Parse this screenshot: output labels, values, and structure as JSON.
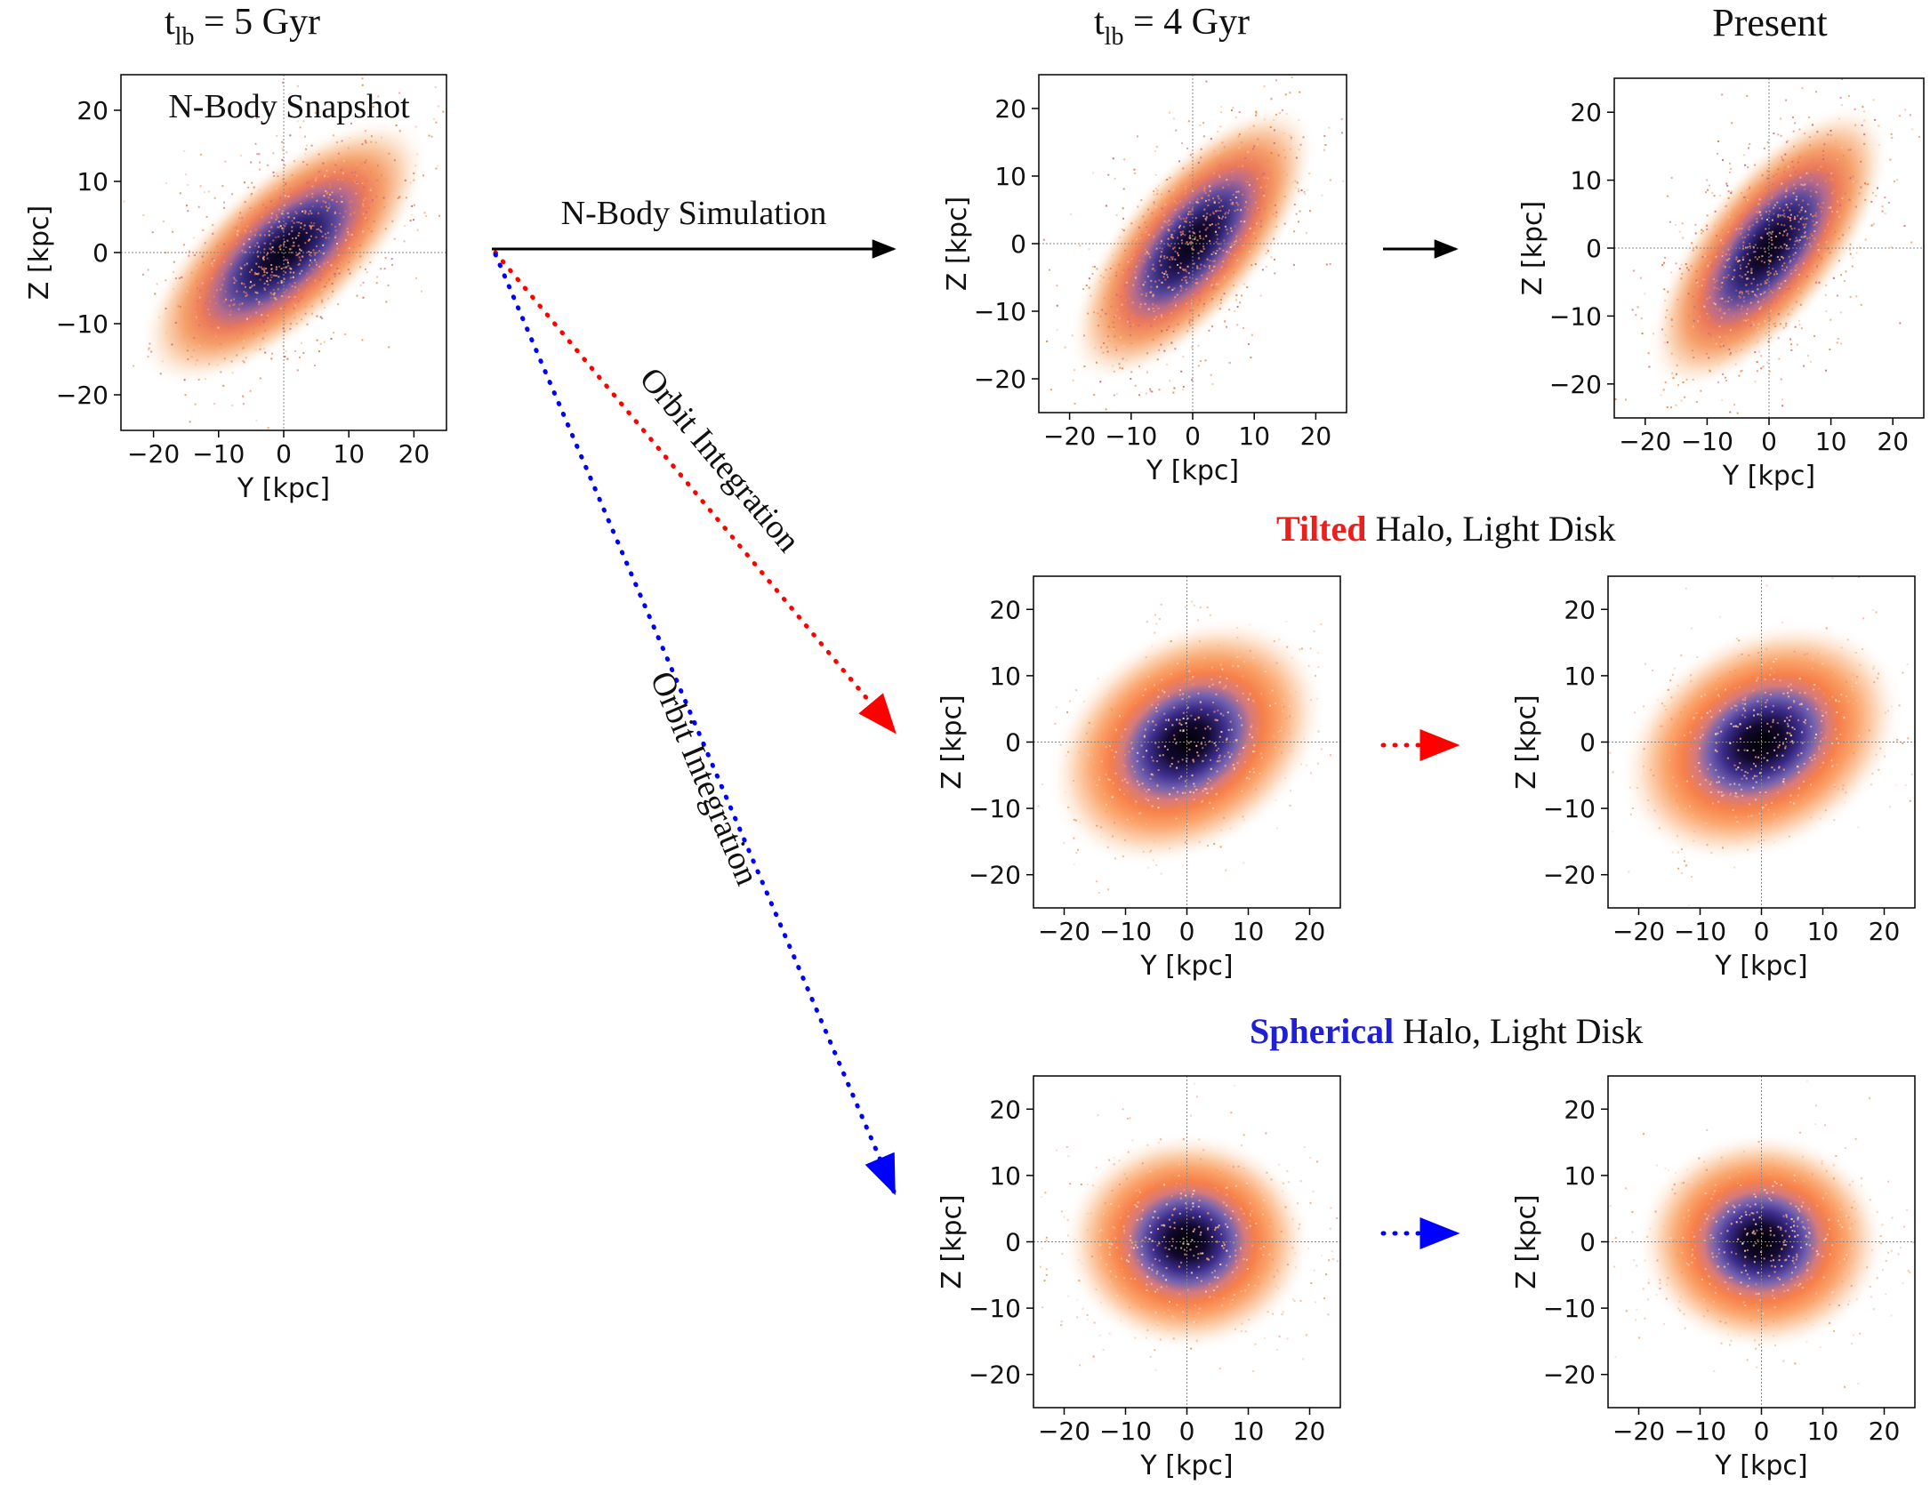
{
  "columns": {
    "left": {
      "t_main": "t",
      "t_sub": "lb",
      "t_rest": " = 5 Gyr"
    },
    "middle": {
      "t_main": "t",
      "t_sub": "lb",
      "t_rest": " = 4 Gyr"
    },
    "right": {
      "label": "Present"
    }
  },
  "snapshot_label": "N-Body Snapshot",
  "arrows": {
    "nbody_simulation": "N-Body Simulation",
    "orbit_integration_red": "Orbit Integration",
    "orbit_integration_blue": "Orbit Integration"
  },
  "rows": {
    "tilted": {
      "highlight": "Tilted",
      "rest": " Halo, Light Disk",
      "color": "#e8211f"
    },
    "spherical": {
      "highlight": "Spherical",
      "rest": " Halo, Light Disk",
      "color": "#1f1fd6"
    }
  },
  "axes": {
    "xlabel": "Y [kpc]",
    "ylabel": "Z [kpc]",
    "xticks": [
      "−20",
      "−10",
      "0",
      "10",
      "20"
    ],
    "yticks": [
      "20",
      "10",
      "0",
      "−10",
      "−20"
    ]
  },
  "colors": {
    "black_arrow": "#000000",
    "red_arrow": "#ff0000",
    "blue_arrow": "#0000ff"
  },
  "chart_data": [
    {
      "type": "scatter",
      "id": "nbody-5gyr",
      "xlabel": "Y [kpc]",
      "ylabel": "Z [kpc]",
      "xlim": [
        -25,
        25
      ],
      "ylim": [
        -25,
        25
      ],
      "style": "particles",
      "tilt_deg": -42,
      "annotation": "N-Body Snapshot"
    },
    {
      "type": "scatter",
      "id": "nbody-4gyr",
      "xlabel": "Y [kpc]",
      "ylabel": "Z [kpc]",
      "xlim": [
        -25,
        25
      ],
      "ylim": [
        -25,
        25
      ],
      "style": "particles",
      "tilt_deg": -50
    },
    {
      "type": "scatter",
      "id": "nbody-present",
      "xlabel": "Y [kpc]",
      "ylabel": "Z [kpc]",
      "xlim": [
        -25,
        25
      ],
      "ylim": [
        -25,
        25
      ],
      "style": "particles",
      "tilt_deg": -52
    },
    {
      "type": "heatmap",
      "id": "tilted-4gyr",
      "xlabel": "Y [kpc]",
      "ylabel": "Z [kpc]",
      "xlim": [
        -25,
        25
      ],
      "ylim": [
        -25,
        25
      ],
      "style": "smooth",
      "tilt_deg": -35
    },
    {
      "type": "heatmap",
      "id": "tilted-present",
      "xlabel": "Y [kpc]",
      "ylabel": "Z [kpc]",
      "xlim": [
        -25,
        25
      ],
      "ylim": [
        -25,
        25
      ],
      "style": "smooth",
      "tilt_deg": -30
    },
    {
      "type": "heatmap",
      "id": "spherical-4gyr",
      "xlabel": "Y [kpc]",
      "ylabel": "Z [kpc]",
      "xlim": [
        -25,
        25
      ],
      "ylim": [
        -25,
        25
      ],
      "style": "smooth",
      "tilt_deg": 0
    },
    {
      "type": "heatmap",
      "id": "spherical-present",
      "xlabel": "Y [kpc]",
      "ylabel": "Z [kpc]",
      "xlim": [
        -25,
        25
      ],
      "ylim": [
        -25,
        25
      ],
      "style": "smooth",
      "tilt_deg": 0
    }
  ]
}
